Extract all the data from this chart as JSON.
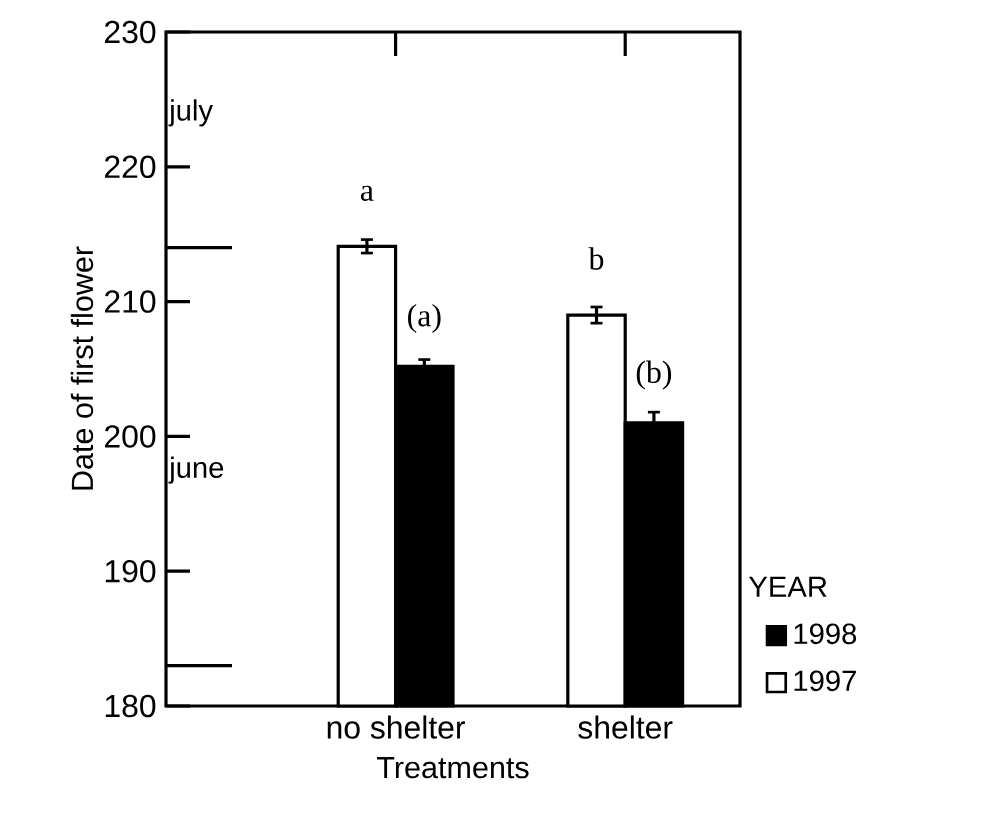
{
  "chart_data": {
    "type": "bar",
    "xlabel": "Treatments",
    "ylabel": "Date of first flower",
    "legend_title": "YEAR",
    "categories": [
      "no shelter",
      "shelter"
    ],
    "series": [
      {
        "name": "1997",
        "color": "#ffffff",
        "values": [
          214.1,
          209.0
        ],
        "errors": [
          0.5,
          0.6
        ]
      },
      {
        "name": "1998",
        "color": "#000000",
        "values": [
          205.2,
          201.0
        ],
        "errors": [
          0.5,
          0.8
        ]
      }
    ],
    "ylim": [
      180,
      230
    ],
    "yticks": [
      180,
      190,
      200,
      210,
      220,
      230
    ],
    "ref_lines": [
      {
        "axis": "y",
        "value": 214,
        "color": "#000000"
      },
      {
        "axis": "y",
        "value": 183,
        "color": "#000000"
      }
    ],
    "annotations": [
      "july",
      "june",
      "a",
      "(a)",
      "b",
      "(b)"
    ],
    "legend": "bottom right",
    "grid": false
  }
}
